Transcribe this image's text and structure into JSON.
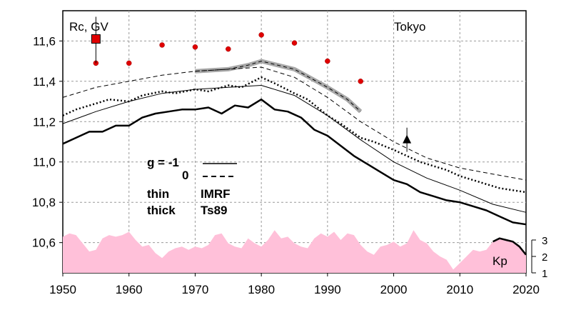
{
  "chart_data": {
    "type": "line",
    "ylabel": "Rc, GV",
    "station": "Tokyo",
    "xlim": [
      1950,
      2020
    ],
    "ylim": [
      10.45,
      11.75
    ],
    "x_ticks": [
      1950,
      1960,
      1970,
      1980,
      1990,
      2000,
      2010,
      2020
    ],
    "y_ticks": [
      10.6,
      10.8,
      11.0,
      11.2,
      11.4,
      11.6
    ],
    "y_tick_labels": [
      "10,6",
      "10,8",
      "11,0",
      "11,2",
      "11,4",
      "11,6"
    ],
    "grid": true,
    "legend": {
      "g_label": "g  = -1",
      "zero_label": "0",
      "thin_label": "thin",
      "thick_label": "thick",
      "imrf_label": "IMRF",
      "ts89_label": "Ts89"
    },
    "series": [
      {
        "style": "thin-dashed",
        "x": [
          1950,
          1955,
          1960,
          1965,
          1970,
          1975,
          1980,
          1985,
          1990,
          1995,
          2000,
          2005,
          2010,
          2015,
          2020
        ],
        "y": [
          11.32,
          11.37,
          11.4,
          11.43,
          11.45,
          11.46,
          11.47,
          11.42,
          11.32,
          11.2,
          11.1,
          11.02,
          10.97,
          10.94,
          10.91
        ]
      },
      {
        "style": "thick-dotted",
        "x": [
          1950,
          1952,
          1955,
          1957,
          1960,
          1962,
          1965,
          1967,
          1970,
          1972,
          1975,
          1977,
          1980,
          1982,
          1985,
          1987,
          1990,
          1992,
          1995,
          1997,
          2000,
          2002,
          2004,
          2006,
          2008,
          2010,
          2012,
          2014,
          2016,
          2018,
          2020
        ],
        "y": [
          11.23,
          11.26,
          11.29,
          11.31,
          11.3,
          11.33,
          11.35,
          11.34,
          11.36,
          11.35,
          11.38,
          11.37,
          11.42,
          11.39,
          11.34,
          11.31,
          11.23,
          11.19,
          11.12,
          11.1,
          11.06,
          11.03,
          11.0,
          10.98,
          10.96,
          10.93,
          10.91,
          10.89,
          10.87,
          10.86,
          10.85
        ]
      },
      {
        "style": "thin-solid",
        "x": [
          1950,
          1955,
          1960,
          1965,
          1970,
          1975,
          1980,
          1985,
          1990,
          1995,
          2000,
          2005,
          2010,
          2015,
          2020
        ],
        "y": [
          11.19,
          11.25,
          11.3,
          11.34,
          11.36,
          11.37,
          11.38,
          11.33,
          11.23,
          11.11,
          11.0,
          10.92,
          10.86,
          10.79,
          10.75
        ]
      },
      {
        "style": "thick-solid",
        "x": [
          1950,
          1952,
          1954,
          1956,
          1958,
          1960,
          1962,
          1964,
          1966,
          1968,
          1970,
          1972,
          1974,
          1976,
          1978,
          1980,
          1982,
          1984,
          1986,
          1988,
          1990,
          1992,
          1994,
          1996,
          1998,
          2000,
          2002,
          2004,
          2006,
          2008,
          2010,
          2012,
          2014,
          2016,
          2018,
          2020
        ],
        "y": [
          11.09,
          11.12,
          11.15,
          11.15,
          11.18,
          11.18,
          11.22,
          11.24,
          11.25,
          11.26,
          11.26,
          11.27,
          11.24,
          11.28,
          11.27,
          11.31,
          11.26,
          11.25,
          11.22,
          11.16,
          11.13,
          11.08,
          11.03,
          10.99,
          10.95,
          10.91,
          10.89,
          10.85,
          10.83,
          10.81,
          10.8,
          10.78,
          10.76,
          10.73,
          10.7,
          10.69
        ]
      },
      {
        "style": "gray-band",
        "x": [
          1970,
          1975,
          1978,
          1980,
          1985,
          1990,
          1993,
          1995
        ],
        "y": [
          11.45,
          11.46,
          11.48,
          11.5,
          11.46,
          11.37,
          11.31,
          11.25
        ]
      }
    ],
    "red_points": {
      "x": [
        1955,
        1960,
        1965,
        1970,
        1975,
        1980,
        1985,
        1990,
        1995
      ],
      "y": [
        11.49,
        11.49,
        11.58,
        11.57,
        11.56,
        11.63,
        11.59,
        11.5,
        11.4
      ]
    },
    "square_marker": {
      "x": 1955,
      "y": 11.61,
      "low": 11.49,
      "high": 11.72
    },
    "triangle_marker": {
      "x": 2002,
      "y": 11.11,
      "low": 11.05,
      "high": 11.17
    },
    "kp": {
      "label": "Kp",
      "y_ticks": [
        1,
        2,
        3
      ],
      "ylim": [
        1,
        4.2
      ],
      "x": [
        1950,
        1951,
        1952,
        1953,
        1954,
        1955,
        1956,
        1957,
        1958,
        1959,
        1960,
        1961,
        1962,
        1963,
        1964,
        1965,
        1966,
        1967,
        1968,
        1969,
        1970,
        1971,
        1972,
        1973,
        1974,
        1975,
        1976,
        1977,
        1978,
        1979,
        1980,
        1981,
        1982,
        1983,
        1984,
        1985,
        1986,
        1987,
        1988,
        1989,
        1990,
        1991,
        1992,
        1993,
        1994,
        1995,
        1996,
        1997,
        1998,
        1999,
        2000,
        2001,
        2002,
        2003,
        2004,
        2005,
        2006,
        2007,
        2008,
        2009,
        2010,
        2011,
        2012,
        2013,
        2014,
        2015,
        2016,
        2017,
        2018,
        2019,
        2020
      ],
      "values": [
        3.2,
        3.4,
        3.3,
        2.8,
        2.3,
        2.4,
        3.1,
        3.3,
        3.2,
        3.3,
        3.5,
        3.0,
        2.6,
        2.7,
        2.2,
        1.9,
        2.3,
        2.5,
        2.6,
        2.4,
        2.6,
        2.5,
        2.7,
        3.3,
        3.4,
        2.8,
        2.6,
        2.5,
        3.1,
        2.8,
        2.6,
        3.0,
        3.6,
        3.1,
        3.2,
        2.8,
        2.6,
        2.5,
        3.1,
        3.4,
        3.2,
        3.5,
        3.0,
        3.4,
        3.3,
        2.7,
        2.3,
        2.1,
        2.6,
        2.7,
        2.9,
        2.6,
        2.8,
        3.6,
        3.0,
        2.8,
        2.3,
        2.0,
        1.8,
        1.2,
        1.6,
        2.0,
        2.4,
        2.3,
        2.4,
        2.9,
        3.1,
        3.0,
        2.9,
        2.6,
        2.1
      ]
    }
  }
}
